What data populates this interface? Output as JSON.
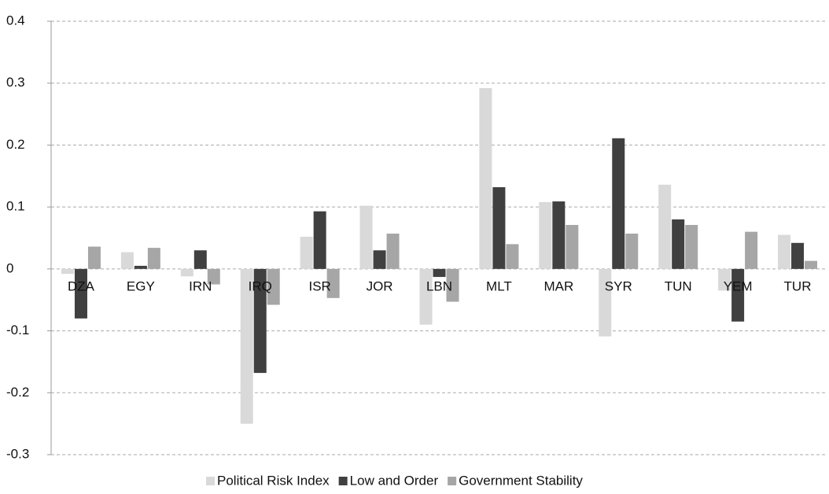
{
  "chart_data": {
    "type": "bar",
    "categories": [
      "DZA",
      "EGY",
      "IRN",
      "IRQ",
      "ISR",
      "JOR",
      "LBN",
      "MLT",
      "MAR",
      "SYR",
      "TUN",
      "YEM",
      "TUR"
    ],
    "series": [
      {
        "name": "Political Risk Index",
        "color": "#d9d9d9",
        "values": [
          -0.008,
          0.027,
          -0.012,
          -0.25,
          0.052,
          0.102,
          -0.09,
          0.292,
          0.108,
          -0.109,
          0.136,
          -0.035,
          0.055
        ]
      },
      {
        "name": "Low and Order",
        "color": "#404040",
        "values": [
          -0.08,
          0.005,
          0.03,
          -0.168,
          0.093,
          0.03,
          -0.013,
          0.132,
          0.109,
          0.211,
          0.08,
          -0.085,
          0.042
        ]
      },
      {
        "name": "Government Stability",
        "color": "#a6a6a6",
        "values": [
          0.036,
          0.034,
          -0.025,
          -0.058,
          -0.047,
          0.057,
          -0.053,
          0.04,
          0.071,
          0.057,
          0.071,
          0.06,
          0.013
        ]
      }
    ],
    "ylim": [
      -0.3,
      0.4
    ],
    "yticks": [
      -0.3,
      -0.2,
      -0.1,
      0,
      0.1,
      0.2,
      0.3,
      0.4
    ],
    "grid": true
  }
}
